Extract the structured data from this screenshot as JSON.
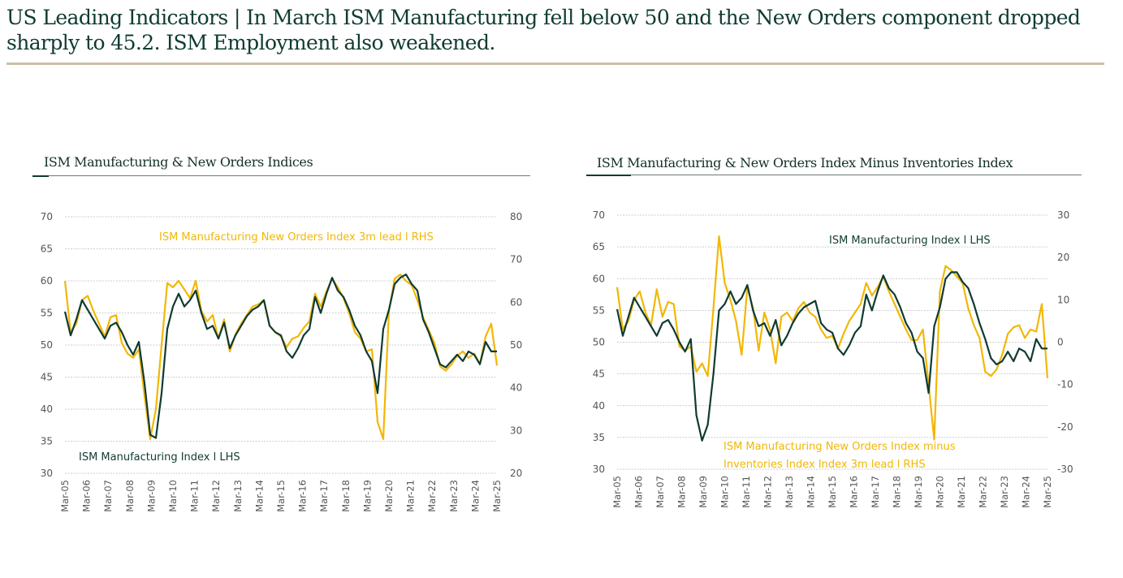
{
  "header": {
    "title_line1": "US Leading Indicators | In March ISM Manufacturing fell below 50 and the New Orders component dropped",
    "title_line2": "sharply to 45.2. ISM Employment also weakened."
  },
  "colors": {
    "dark_series": "#0f3b32",
    "gold_series": "#f2b705",
    "headline_rule": "#cbbfa8",
    "grid": "#bdbdbd"
  },
  "chart_data": [
    {
      "type": "line",
      "title": "ISM Manufacturing & New Orders Indices",
      "x_tick_labels": [
        "Mar-05",
        "Mar-06",
        "Mar-07",
        "Mar-08",
        "Mar-09",
        "Mar-10",
        "Mar-11",
        "Mar-12",
        "Mar-13",
        "Mar-14",
        "Mar-15",
        "Mar-16",
        "Mar-17",
        "Mar-18",
        "Mar-19",
        "Mar-20",
        "Mar-21",
        "Mar-22",
        "Mar-23",
        "Mar-24",
        "Mar-25"
      ],
      "left_axis": {
        "range": [
          30,
          70
        ],
        "ticks": [
          "30",
          "35",
          "40",
          "45",
          "50",
          "55",
          "60",
          "65",
          "70"
        ]
      },
      "right_axis": {
        "range": [
          20,
          80
        ],
        "ticks": [
          "20",
          "30",
          "40",
          "50",
          "60",
          "70",
          "80"
        ]
      },
      "grid": true,
      "x_start": "2005-03",
      "x_end": "2025-03",
      "x_step": "quarterly",
      "series": [
        {
          "name": "ISM Manufacturing Index | LHS",
          "axis": "left",
          "color": "#0f3b32",
          "label": "ISM Manufacturing  Index l LHS",
          "values": [
            55.2,
            51.5,
            54.0,
            57.0,
            55.5,
            54.0,
            52.5,
            51.0,
            53.0,
            53.5,
            52.0,
            50.0,
            48.5,
            50.5,
            44.0,
            36.0,
            35.5,
            42.5,
            52.5,
            56.0,
            58.0,
            56.0,
            57.0,
            58.5,
            55.0,
            52.5,
            53.0,
            51.0,
            53.5,
            49.5,
            51.5,
            53.0,
            54.5,
            55.5,
            56.0,
            57.0,
            53.0,
            52.0,
            51.5,
            49.0,
            48.0,
            49.5,
            51.5,
            52.5,
            57.5,
            55.0,
            58.0,
            60.5,
            58.5,
            57.5,
            55.5,
            53.0,
            51.5,
            49.0,
            47.5,
            42.5,
            52.5,
            55.5,
            59.5,
            60.5,
            61.0,
            59.5,
            58.5,
            54.0,
            52.0,
            49.5,
            47.0,
            46.5,
            47.5,
            48.5,
            47.5,
            49.0,
            48.5,
            47.0,
            50.5,
            49.0,
            49.0
          ]
        },
        {
          "name": "ISM Manufacturing New Orders Index 3m lead | RHS",
          "axis": "right",
          "color": "#f2b705",
          "label": "ISM Manufacturing  New Orders Index  3m lead l RHS",
          "values": [
            65.0,
            53.0,
            55.0,
            60.5,
            61.5,
            58.0,
            55.0,
            52.0,
            56.5,
            57.0,
            50.5,
            48.0,
            47.0,
            49.0,
            38.0,
            28.0,
            35.0,
            50.0,
            64.5,
            63.5,
            65.0,
            63.0,
            61.0,
            65.0,
            58.0,
            55.5,
            57.0,
            51.5,
            56.0,
            48.5,
            52.5,
            55.0,
            57.0,
            59.0,
            59.5,
            60.5,
            54.5,
            53.0,
            52.0,
            49.5,
            51.5,
            52.0,
            54.0,
            55.5,
            62.0,
            59.0,
            62.5,
            65.5,
            63.5,
            61.0,
            57.5,
            53.0,
            51.5,
            48.5,
            49.0,
            32.0,
            28.0,
            58.0,
            65.5,
            66.5,
            65.0,
            64.0,
            60.5,
            56.5,
            53.5,
            50.5,
            45.0,
            44.0,
            45.5,
            47.5,
            48.5,
            47.0,
            48.0,
            45.5,
            52.0,
            55.0,
            45.2
          ]
        }
      ]
    },
    {
      "type": "line",
      "title": "ISM Manufacturing & New Orders Index Minus Inventories Index",
      "x_tick_labels": [
        "Mar-05",
        "Mar-06",
        "Mar-07",
        "Mar-08",
        "Mar-09",
        "Mar-10",
        "Mar-11",
        "Mar-12",
        "Mar-13",
        "Mar-14",
        "Mar-15",
        "Mar-16",
        "Mar-17",
        "Mar-18",
        "Mar-19",
        "Mar-20",
        "Mar-21",
        "Mar-22",
        "Mar-23",
        "Mar-24",
        "Mar-25"
      ],
      "left_axis": {
        "range": [
          30,
          70
        ],
        "ticks": [
          "30",
          "35",
          "40",
          "45",
          "50",
          "55",
          "60",
          "65",
          "70"
        ]
      },
      "right_axis": {
        "range": [
          -30,
          30
        ],
        "ticks": [
          "-30",
          "-20",
          "-10",
          "0",
          "10",
          "20",
          "30"
        ]
      },
      "grid": true,
      "x_start": "2005-03",
      "x_end": "2025-03",
      "x_step": "quarterly",
      "series": [
        {
          "name": "ISM Manufacturing Index | LHS",
          "axis": "left",
          "color": "#0f3b32",
          "label": "ISM Manufacturing Index l LHS",
          "values": [
            55.2,
            51.0,
            54.0,
            57.0,
            55.5,
            54.0,
            52.5,
            51.0,
            53.0,
            53.5,
            52.0,
            50.0,
            48.5,
            50.5,
            38.5,
            34.5,
            37.0,
            45.0,
            55.0,
            56.0,
            58.0,
            56.0,
            57.0,
            59.0,
            55.0,
            52.5,
            53.0,
            51.0,
            53.5,
            49.5,
            51.0,
            53.0,
            54.5,
            55.5,
            56.0,
            56.5,
            53.0,
            52.0,
            51.5,
            49.0,
            48.0,
            49.5,
            51.5,
            52.5,
            57.5,
            55.0,
            58.0,
            60.5,
            58.5,
            57.5,
            55.5,
            53.0,
            51.5,
            48.5,
            47.5,
            42.0,
            52.5,
            55.5,
            60.0,
            61.0,
            61.0,
            59.5,
            58.5,
            56.0,
            53.0,
            50.5,
            47.5,
            46.5,
            47.0,
            48.5,
            47.0,
            49.0,
            48.5,
            47.0,
            50.5,
            49.0,
            49.0
          ]
        },
        {
          "name": "ISM Manufacturing New Orders Index minus Inventories Index 3m lead | RHS",
          "axis": "right",
          "color": "#f2b705",
          "label_line1": "ISM Manufacturing  New Orders Index minus",
          "label_line2": "Inventories  Index Index 3m lead l RHS",
          "values": [
            13.0,
            3.0,
            5.0,
            10.0,
            12.0,
            7.0,
            4.0,
            12.5,
            6.0,
            9.5,
            9.0,
            -1.0,
            -2.0,
            -1.0,
            -7.0,
            -5.0,
            -8.0,
            8.0,
            25.0,
            14.0,
            10.0,
            5.0,
            -3.0,
            13.0,
            8.0,
            -2.0,
            7.0,
            3.0,
            -5.0,
            6.0,
            7.0,
            5.0,
            8.0,
            9.5,
            7.0,
            6.0,
            3.0,
            1.0,
            1.5,
            -1.5,
            2.0,
            5.0,
            7.0,
            9.0,
            14.0,
            11.0,
            13.0,
            15.5,
            12.0,
            9.0,
            6.0,
            3.0,
            0.5,
            0.5,
            3.0,
            -10.0,
            -23.0,
            12.0,
            18.0,
            17.0,
            15.5,
            14.0,
            8.0,
            4.0,
            1.0,
            -7.0,
            -8.0,
            -6.5,
            -3.0,
            2.0,
            3.5,
            4.0,
            1.0,
            3.0,
            2.5,
            9.0,
            -8.5
          ]
        }
      ]
    }
  ]
}
